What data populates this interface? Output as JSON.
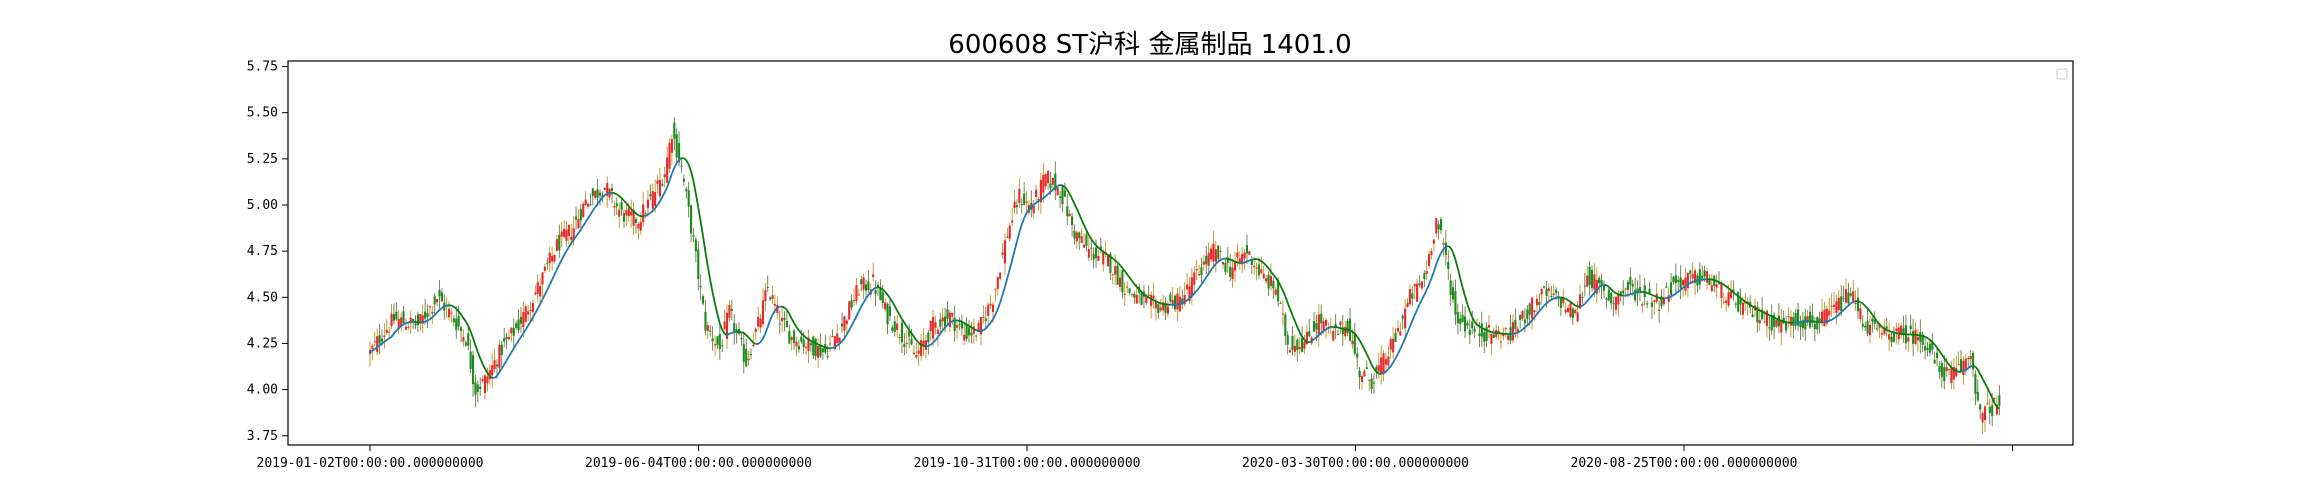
{
  "title": "600608 ST沪科 金属制品 1401.0",
  "chart_data": {
    "type": "candlestick",
    "title": "600608 ST沪科 金属制品 1401.0",
    "xlabel": "",
    "ylabel": "",
    "ylim": [
      3.7,
      5.78
    ],
    "grid": false,
    "legend": {
      "placement": "top-right",
      "entries": []
    },
    "up_color": "#e8262b",
    "down_color": "#1a8a1a",
    "ma_color": "#1f77b4",
    "ma_down_color": "#0a7a0a",
    "x_ticks": [
      {
        "index": 0,
        "label": "2019-01-02T00:00:00.000000000"
      },
      {
        "index": 100,
        "label": "2019-06-04T00:00:00.000000000"
      },
      {
        "index": 200,
        "label": "2019-10-31T00:00:00.000000000"
      },
      {
        "index": 300,
        "label": "2020-03-30T00:00:00.000000000"
      },
      {
        "index": 400,
        "label": "2020-08-25T00:00:00.000000000"
      },
      {
        "index": 500,
        "label": ""
      }
    ],
    "y_ticks": [
      3.75,
      4.0,
      4.25,
      4.5,
      4.75,
      5.0,
      5.25,
      5.5,
      5.75
    ],
    "n_points": 500,
    "close_anchors": [
      [
        0,
        4.2
      ],
      [
        5,
        4.3
      ],
      [
        10,
        4.38
      ],
      [
        20,
        4.35
      ],
      [
        28,
        4.5
      ],
      [
        33,
        4.42
      ],
      [
        40,
        4.28
      ],
      [
        44,
        4.0
      ],
      [
        48,
        4.05
      ],
      [
        55,
        4.22
      ],
      [
        62,
        4.35
      ],
      [
        70,
        4.55
      ],
      [
        78,
        4.78
      ],
      [
        85,
        4.88
      ],
      [
        90,
        5.02
      ],
      [
        98,
        5.1
      ],
      [
        105,
        4.95
      ],
      [
        112,
        4.92
      ],
      [
        118,
        5.05
      ],
      [
        123,
        5.18
      ],
      [
        126,
        5.4
      ],
      [
        130,
        5.2
      ],
      [
        135,
        4.8
      ],
      [
        140,
        4.35
      ],
      [
        146,
        4.22
      ],
      [
        150,
        4.42
      ],
      [
        153,
        4.3
      ],
      [
        157,
        4.15
      ],
      [
        162,
        4.35
      ],
      [
        166,
        4.55
      ],
      [
        171,
        4.38
      ],
      [
        176,
        4.28
      ],
      [
        182,
        4.25
      ],
      [
        190,
        4.2
      ],
      [
        197,
        4.35
      ],
      [
        204,
        4.55
      ],
      [
        210,
        4.58
      ],
      [
        216,
        4.4
      ],
      [
        222,
        4.3
      ],
      [
        228,
        4.18
      ],
      [
        235,
        4.35
      ],
      [
        242,
        4.4
      ],
      [
        248,
        4.3
      ],
      [
        254,
        4.32
      ],
      [
        260,
        4.5
      ],
      [
        266,
        4.85
      ],
      [
        271,
        5.05
      ],
      [
        276,
        4.98
      ],
      [
        282,
        5.15
      ],
      [
        288,
        5.08
      ],
      [
        294,
        4.85
      ],
      [
        300,
        4.75
      ],
      [
        308,
        4.7
      ],
      [
        315,
        4.55
      ],
      [
        322,
        4.48
      ],
      [
        330,
        4.45
      ],
      [
        338,
        4.48
      ],
      [
        345,
        4.62
      ],
      [
        352,
        4.75
      ],
      [
        359,
        4.65
      ],
      [
        366,
        4.75
      ],
      [
        373,
        4.6
      ],
      [
        378,
        4.55
      ],
      [
        383,
        4.25
      ],
      [
        390,
        4.25
      ],
      [
        396,
        4.38
      ],
      [
        402,
        4.3
      ],
      [
        408,
        4.35
      ],
      [
        413,
        4.1
      ],
      [
        418,
        4.05
      ],
      [
        423,
        4.15
      ],
      [
        428,
        4.28
      ],
      [
        434,
        4.5
      ],
      [
        440,
        4.6
      ],
      [
        445,
        4.92
      ],
      [
        449,
        4.72
      ],
      [
        453,
        4.4
      ],
      [
        460,
        4.32
      ],
      [
        468,
        4.3
      ],
      [
        476,
        4.3
      ],
      [
        483,
        4.42
      ],
      [
        490,
        4.52
      ],
      [
        497,
        4.48
      ],
      [
        503,
        4.4
      ],
      [
        508,
        4.62
      ],
      [
        513,
        4.55
      ],
      [
        518,
        4.48
      ],
      [
        525,
        4.55
      ],
      [
        532,
        4.5
      ],
      [
        538,
        4.48
      ],
      [
        545,
        4.58
      ],
      [
        552,
        4.6
      ],
      [
        558,
        4.6
      ],
      [
        565,
        4.52
      ],
      [
        572,
        4.45
      ],
      [
        580,
        4.4
      ],
      [
        588,
        4.35
      ],
      [
        596,
        4.38
      ],
      [
        604,
        4.35
      ],
      [
        612,
        4.45
      ],
      [
        618,
        4.52
      ],
      [
        624,
        4.35
      ],
      [
        632,
        4.3
      ],
      [
        640,
        4.3
      ],
      [
        648,
        4.28
      ],
      [
        655,
        4.1
      ],
      [
        660,
        4.08
      ],
      [
        664,
        4.12
      ],
      [
        668,
        4.2
      ],
      [
        672,
        3.85
      ],
      [
        676,
        3.9
      ],
      [
        680,
        3.92
      ]
    ]
  }
}
